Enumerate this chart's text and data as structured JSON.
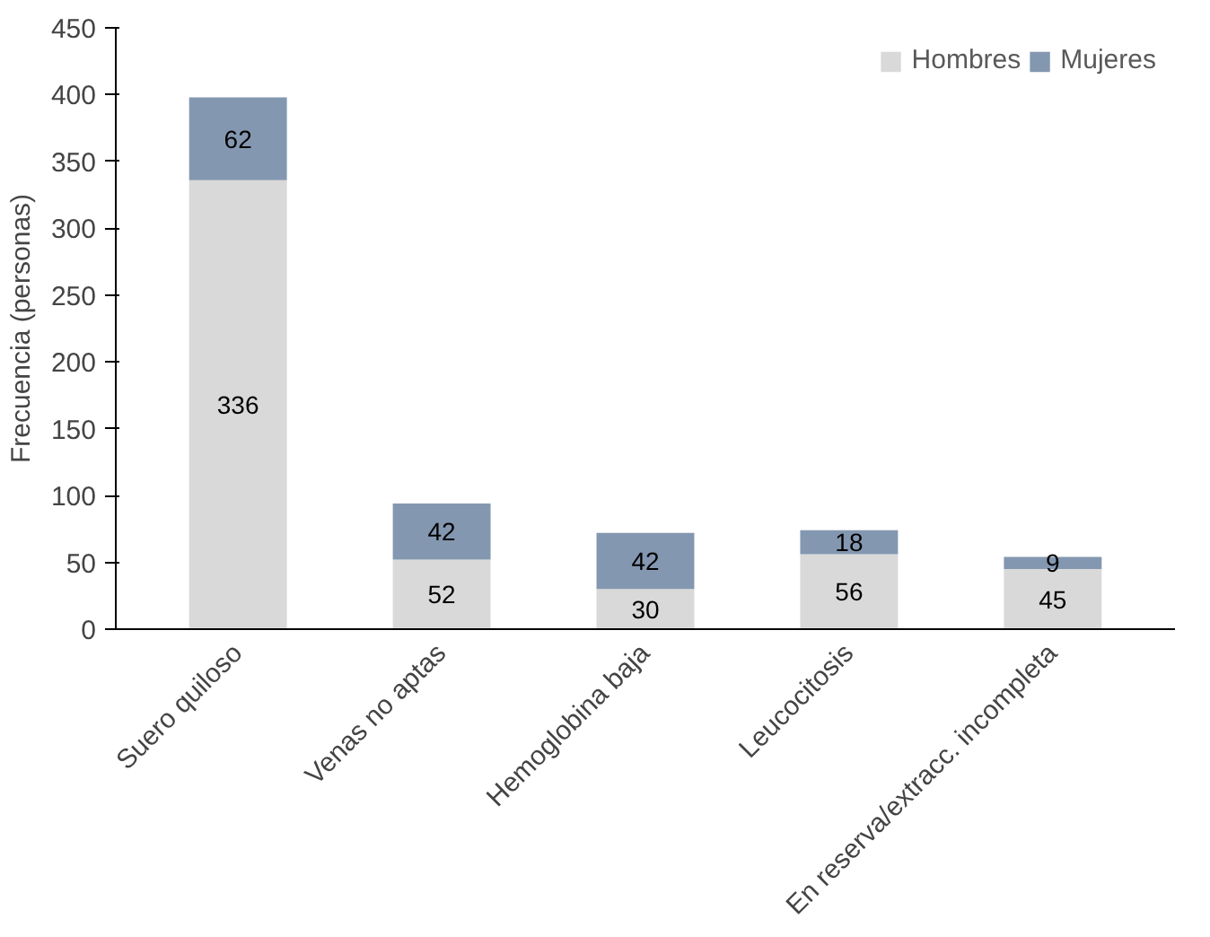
{
  "chart_data": {
    "type": "bar",
    "ylabel": "Frecuencia (personas)",
    "categories": [
      "Suero quiloso",
      "Venas no aptas",
      "Hemoglobina baja",
      "Leucocitosis",
      "En reserva/extracc. incompleta"
    ],
    "stacked": true,
    "data_labels": true,
    "legend": "top right",
    "grid": false,
    "ylim": [
      0,
      450
    ],
    "yticks": [
      0,
      50,
      100,
      150,
      200,
      250,
      300,
      350,
      400,
      450
    ],
    "series": [
      {
        "name": "Hombres",
        "color": "#d9d9d9",
        "values": [
          336,
          52,
          30,
          56,
          45
        ]
      },
      {
        "name": "Mujeres",
        "color": "#8497b0",
        "values": [
          62,
          42,
          42,
          18,
          9
        ]
      }
    ]
  }
}
